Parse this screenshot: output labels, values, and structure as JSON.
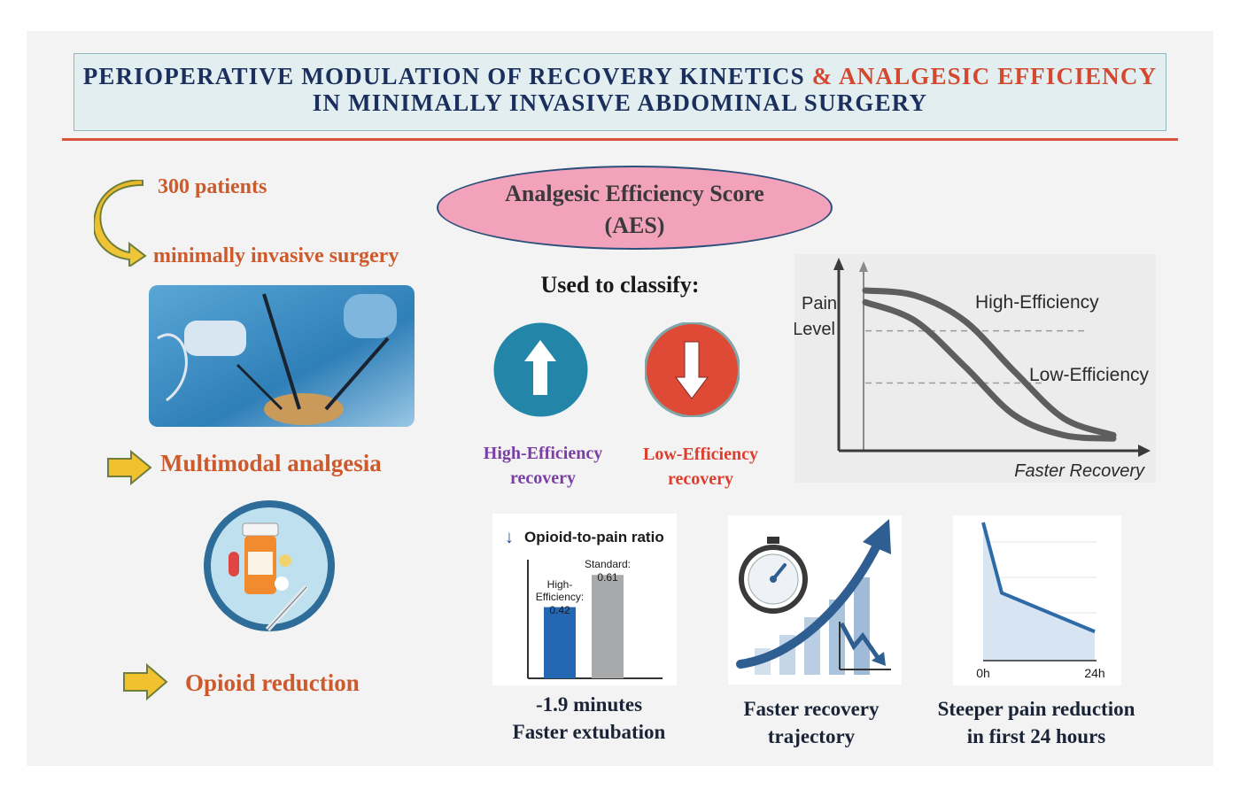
{
  "header": {
    "title_part1": "PERIOPERATIVE  MODULATION  OF RECOVERY  KINETICS",
    "title_amp": "&",
    "title_part2": "ANALGESIC  EFFICIENCY",
    "title_line2": "IN  MINIMALLY  INVASIVE  ABDOMINAL  SURGERY"
  },
  "left": {
    "patients": "300 patients",
    "surgery": "minimally invasive surgery",
    "multimodal": "Multimodal analgesia",
    "opioid": "Opioid reduction"
  },
  "aes": {
    "line1": "Analgesic Efficiency Score",
    "line2": "(AES)",
    "classify": "Used to classify:",
    "high_line1": "High-Efficiency",
    "high_line2": "recovery",
    "low_line1": "Low-Efficiency",
    "low_line2": "recovery"
  },
  "colors": {
    "accent_red": "#d4482f",
    "title_navy": "#1b2f5e",
    "orange_text": "#cc5a2c",
    "up_circle": "#2386a8",
    "down_circle": "#de4a36",
    "high_purple": "#7b3fa4"
  },
  "chart_data": [
    {
      "type": "line",
      "title": "",
      "ylabel_line1": "Pain",
      "ylabel_line2": "Level",
      "xlabel": "Faster Recovery",
      "legend": [
        "High-Efficiency",
        "Low-Efficiency"
      ],
      "series": [
        {
          "name": "High-Efficiency",
          "x": [
            0,
            2,
            4,
            6,
            8,
            10
          ],
          "values": [
            9,
            8.7,
            7.2,
            4.2,
            1.4,
            0.4
          ]
        },
        {
          "name": "Low-Efficiency",
          "x": [
            0,
            2,
            4,
            6,
            8,
            10
          ],
          "values": [
            8.3,
            7.2,
            4.5,
            1.6,
            0.4,
            0.2
          ]
        }
      ],
      "reference_levels": [
        6.6,
        3.5
      ],
      "xlim": [
        0,
        10
      ],
      "ylim": [
        0,
        10
      ]
    },
    {
      "type": "bar",
      "title": "Opioid-to-pain ratio",
      "title_arrow": "↓",
      "categories": [
        "High-Efficiency",
        "Standard"
      ],
      "label_lines": [
        [
          "High-",
          "Efficiency:",
          "0.42"
        ],
        [
          "Standard:",
          "0.61"
        ]
      ],
      "values": [
        0.42,
        0.61
      ],
      "ylim": [
        0,
        0.7
      ]
    },
    {
      "type": "area",
      "x_labels": [
        "0h",
        "24h"
      ],
      "x": [
        0,
        4,
        24
      ],
      "values": [
        10,
        4.9,
        2.1
      ],
      "ylim": [
        0,
        10
      ]
    }
  ],
  "captions": {
    "extubation_line1": "-1.9 minutes",
    "extubation_line2": "Faster extubation",
    "trajectory_line1": "Faster recovery",
    "trajectory_line2": "trajectory",
    "steeper_line1": "Steeper pain reduction",
    "steeper_line2": "in  first  24 hours"
  }
}
